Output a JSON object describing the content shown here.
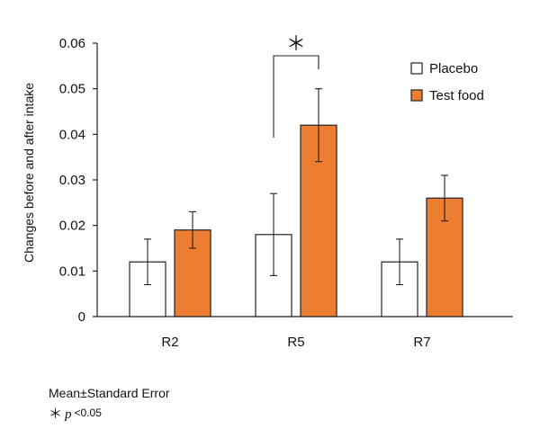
{
  "chart_data": {
    "type": "bar",
    "title": "",
    "xlabel": "",
    "ylabel": "Changes before and after intake",
    "categories": [
      "R2",
      "R5",
      "R7"
    ],
    "ylim": [
      0,
      0.06
    ],
    "yticks": [
      "0",
      "0.01",
      "0.02",
      "0.03",
      "0.04",
      "0.05",
      "0.06"
    ],
    "grid": false,
    "legend_position": "top-right",
    "series": [
      {
        "name": "Placebo",
        "color": "#ffffff",
        "values": [
          0.012,
          0.018,
          0.012
        ],
        "error": [
          0.005,
          0.009,
          0.005
        ]
      },
      {
        "name": "Test food",
        "color": "#ed7d31",
        "values": [
          0.019,
          0.042,
          0.026
        ],
        "error": [
          0.004,
          0.008,
          0.005
        ]
      }
    ],
    "significance": [
      {
        "category": "R5",
        "marker": "＊"
      }
    ]
  },
  "footnotes": {
    "line1": "Mean±Standard Error",
    "line2_star": "＊",
    "line2_p": "p",
    "line2_lt": "<",
    "line2_threshold": "0.05"
  }
}
